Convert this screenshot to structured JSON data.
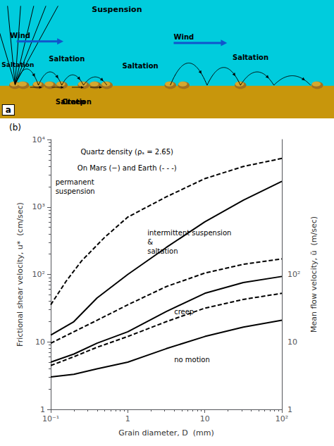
{
  "chart_data": [
    {
      "type": "diagram",
      "title": "a",
      "colors": [
        "#00CCDD",
        "#C8960C"
      ],
      "annotations": [
        "Suspension",
        "Wind",
        "Wind",
        "Saltation",
        "Saltation",
        "Saltation",
        "Saltation",
        "Saltation",
        "Creep"
      ]
    },
    {
      "type": "line",
      "title": "(b)",
      "annotations": [
        "permanent\nsuspension",
        "intermittent suspension\n&\nsaltation",
        "creep",
        "no motion",
        "Quartz density (ρₛ = 2.65)",
        "On Mars (−) and Earth (- - -)"
      ],
      "x_label": "Grain diameter, D  (mm)",
      "y_label": "Frictional shear velocity, u*  (cm/sec)",
      "y2_label": "Mean flow velocity, ū  (m/sec)",
      "log": true,
      "grid": false,
      "xlim": [
        0.1,
        100
      ],
      "xticks": [
        {
          "value": 0.1,
          "label": "10⁻¹"
        },
        1,
        10,
        {
          "value": 100,
          "label": "10²"
        }
      ],
      "ylim": [
        1,
        10000
      ],
      "yticks": [
        1,
        10,
        {
          "value": 100,
          "label": "10²"
        },
        {
          "value": 1000,
          "label": "10³"
        },
        {
          "value": 10000,
          "label": "10⁴"
        }
      ],
      "y2lim": [
        1,
        10000
      ],
      "y2ticks": [
        1,
        10,
        {
          "value": 100,
          "label": "10²"
        }
      ],
      "series": [
        {
          "color": "#000000",
          "line_style": "solid",
          "x": [
            0.1,
            0.19952623,
            0.39810717,
            1,
            3.16227766,
            10,
            31.6227766,
            100
          ],
          "values": [
            12.58925,
            19.95262,
            44.66836,
            100,
            251.1886,
            602.5596,
            1258.925,
            2398.833
          ]
        },
        {
          "color": "#000000",
          "line_style": "solid",
          "x": [
            0.1,
            0.19952623,
            0.39810717,
            1,
            3.16227766,
            10,
            31.6227766,
            100
          ],
          "values": [
            5.011872,
            6.606934,
            9.549926,
            14.12538,
            28.18383,
            52.48075,
            75.85776,
            93.32543
          ]
        },
        {
          "color": "#000000",
          "line_style": "solid",
          "x": [
            0.1,
            0.19952623,
            0.39810717,
            1,
            3.16227766,
            10,
            31.6227766,
            100
          ],
          "values": [
            3.019952,
            3.311311,
            3.981072,
            5.011872,
            7.943282,
            12.02264,
            16.59587,
            20.89296
          ]
        },
        {
          "color": "#000000",
          "line_style": "dashed",
          "x": [
            0.1,
            0.15848932,
            0.25118864,
            0.50118723,
            1,
            3.16227766,
            10,
            31.6227766,
            100
          ],
          "values": [
            35.48134,
            79.43282,
            158.4893,
            354.8134,
            707.9458,
            1412.538,
            2630.268,
            3981.072,
            5248.075
          ]
        },
        {
          "color": "#000000",
          "line_style": "dashed",
          "x": [
            0.1,
            0.19952623,
            0.39810717,
            1,
            3.16227766,
            10,
            31.6227766,
            100
          ],
          "values": [
            9.549926,
            14.12538,
            20.89296,
            35.48134,
            66.06934,
            104.7129,
            141.2538,
            169.8244
          ]
        },
        {
          "color": "#000000",
          "line_style": "dashed",
          "x": [
            0.1,
            0.19952623,
            0.39810717,
            1,
            3.16227766,
            10,
            31.6227766,
            100
          ],
          "values": [
            4.466836,
            6.025596,
            8.317638,
            12.02264,
            19.95262,
            31.62278,
            42.65795,
            52.48075
          ]
        }
      ]
    }
  ]
}
